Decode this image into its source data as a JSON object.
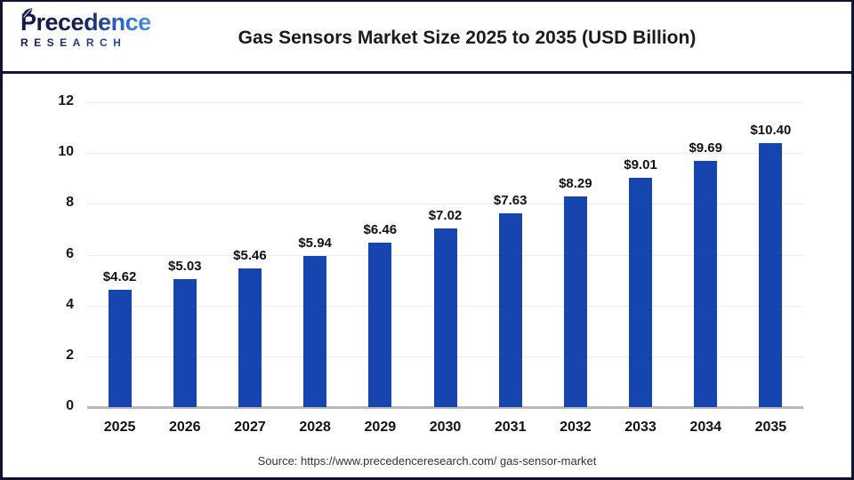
{
  "header": {
    "logo": {
      "line1": "Precedence",
      "line2": "RESEARCH",
      "icon": "leaf-icon"
    },
    "title": "Gas Sensors Market Size 2025 to 2035 (USD Billion)"
  },
  "chart_data": {
    "type": "bar",
    "title": "Gas Sensors Market Size 2025 to 2035 (USD Billion)",
    "categories": [
      "2025",
      "2026",
      "2027",
      "2028",
      "2029",
      "2030",
      "2031",
      "2032",
      "2033",
      "2034",
      "2035"
    ],
    "values": [
      4.62,
      5.03,
      5.46,
      5.94,
      6.46,
      7.02,
      7.63,
      8.29,
      9.01,
      9.69,
      10.4
    ],
    "bar_labels": [
      "$4.62",
      "$5.03",
      "$5.46",
      "$5.94",
      "$6.46",
      "$7.02",
      "$7.63",
      "$8.29",
      "$9.01",
      "$9.69",
      "$10.40"
    ],
    "xlabel": "",
    "ylabel": "",
    "ylim": [
      0,
      12
    ],
    "yticks": [
      0,
      2,
      4,
      6,
      8,
      10,
      12
    ],
    "grid": "horizontal-only",
    "legend": "none",
    "bar_color": "#1745b0"
  },
  "footer": {
    "source": "Source: https://www.precedenceresearch.com/ gas-sensor-market"
  },
  "colors": {
    "bar": "#1745b0",
    "gridline": "#ececec",
    "axis_baseline": "#b9b9b9",
    "outer_border": "#0e1333",
    "header_separator": "#10173d",
    "title_text": "#1a1a1a",
    "logo_navy": "#131b4e",
    "logo_blue": "#2f6bce",
    "source_text": "#333333"
  }
}
